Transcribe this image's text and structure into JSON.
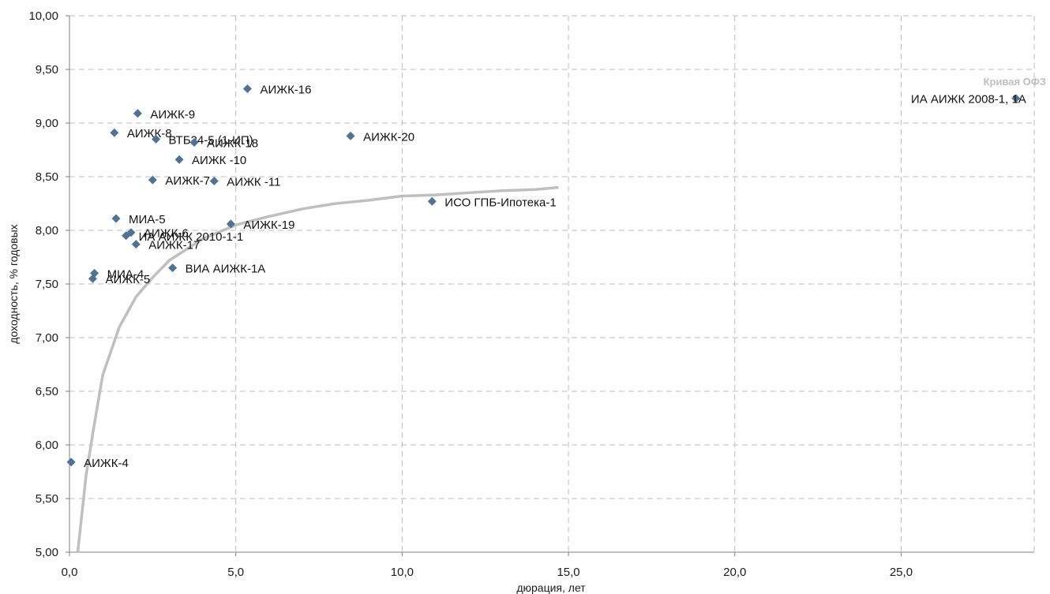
{
  "chart_data": {
    "type": "scatter",
    "xlabel": "дюрация, лет",
    "ylabel": "доходность, % годовых",
    "xlim": [
      0,
      29
    ],
    "ylim": [
      5,
      10
    ],
    "x_ticks": [
      {
        "value": 0,
        "label": "0,0"
      },
      {
        "value": 5,
        "label": "5,0"
      },
      {
        "value": 10,
        "label": "10,0"
      },
      {
        "value": 15,
        "label": "15,0"
      },
      {
        "value": 20,
        "label": "20,0"
      },
      {
        "value": 25,
        "label": "25,0"
      }
    ],
    "y_ticks": [
      {
        "value": 5.0,
        "label": "5,00"
      },
      {
        "value": 5.5,
        "label": "5,50"
      },
      {
        "value": 6.0,
        "label": "6,00"
      },
      {
        "value": 6.5,
        "label": "6,50"
      },
      {
        "value": 7.0,
        "label": "7,00"
      },
      {
        "value": 7.5,
        "label": "7,50"
      },
      {
        "value": 8.0,
        "label": "8,00"
      },
      {
        "value": 8.5,
        "label": "8,50"
      },
      {
        "value": 9.0,
        "label": "9,00"
      },
      {
        "value": 9.5,
        "label": "9,50"
      },
      {
        "value": 10.0,
        "label": "10,00"
      }
    ],
    "grid": true,
    "marker_color": "#4f7394",
    "curve_color": "#bfbfbf",
    "points": [
      {
        "label": "АИЖК-4",
        "x": 0.05,
        "y": 5.84
      },
      {
        "label": "МИА-4",
        "x": 0.75,
        "y": 7.6
      },
      {
        "label": "АИЖК-5",
        "x": 0.7,
        "y": 7.55
      },
      {
        "label": "МИА-5",
        "x": 1.4,
        "y": 8.11
      },
      {
        "label": "АИЖК-8",
        "x": 1.35,
        "y": 8.91
      },
      {
        "label": "АИЖК-6",
        "x": 1.85,
        "y": 7.98
      },
      {
        "label": "ИА АИЖК 2010-1-1",
        "x": 1.7,
        "y": 7.95
      },
      {
        "label": "АИЖК-17",
        "x": 2.0,
        "y": 7.87
      },
      {
        "label": "АИЖК-9",
        "x": 2.05,
        "y": 9.09
      },
      {
        "label": "АИЖК-7",
        "x": 2.5,
        "y": 8.47
      },
      {
        "label": "ВТБ24-5 (1-ИП)",
        "x": 2.6,
        "y": 8.85
      },
      {
        "label": "ВИА АИЖК-1А",
        "x": 3.1,
        "y": 7.65
      },
      {
        "label": "АИЖК -10",
        "x": 3.3,
        "y": 8.66
      },
      {
        "label": "АИЖК-18",
        "x": 3.75,
        "y": 8.82
      },
      {
        "label": "АИЖК -11",
        "x": 4.35,
        "y": 8.46
      },
      {
        "label": "АИЖК-19",
        "x": 4.85,
        "y": 8.06
      },
      {
        "label": "АИЖК-16",
        "x": 5.35,
        "y": 9.32
      },
      {
        "label": "АИЖК-20",
        "x": 8.45,
        "y": 8.88
      },
      {
        "label": "ИСО ГПБ-Ипотека-1",
        "x": 10.9,
        "y": 8.27
      },
      {
        "label": "ИА АИЖК 2008-1, 1А",
        "x": 28.45,
        "y": 9.23
      }
    ],
    "curve": {
      "name": "Кривая ОФЗ",
      "x": [
        0.25,
        0.5,
        0.75,
        1.0,
        1.5,
        2.0,
        2.5,
        3.0,
        4.0,
        5.0,
        6.0,
        7.0,
        8.0,
        9.0,
        10.0,
        11.0,
        12.0,
        13.0,
        14.0,
        14.7
      ],
      "y": [
        5.0,
        5.72,
        6.2,
        6.65,
        7.1,
        7.38,
        7.56,
        7.72,
        7.92,
        8.05,
        8.13,
        8.2,
        8.25,
        8.28,
        8.32,
        8.33,
        8.35,
        8.37,
        8.38,
        8.4
      ]
    }
  }
}
